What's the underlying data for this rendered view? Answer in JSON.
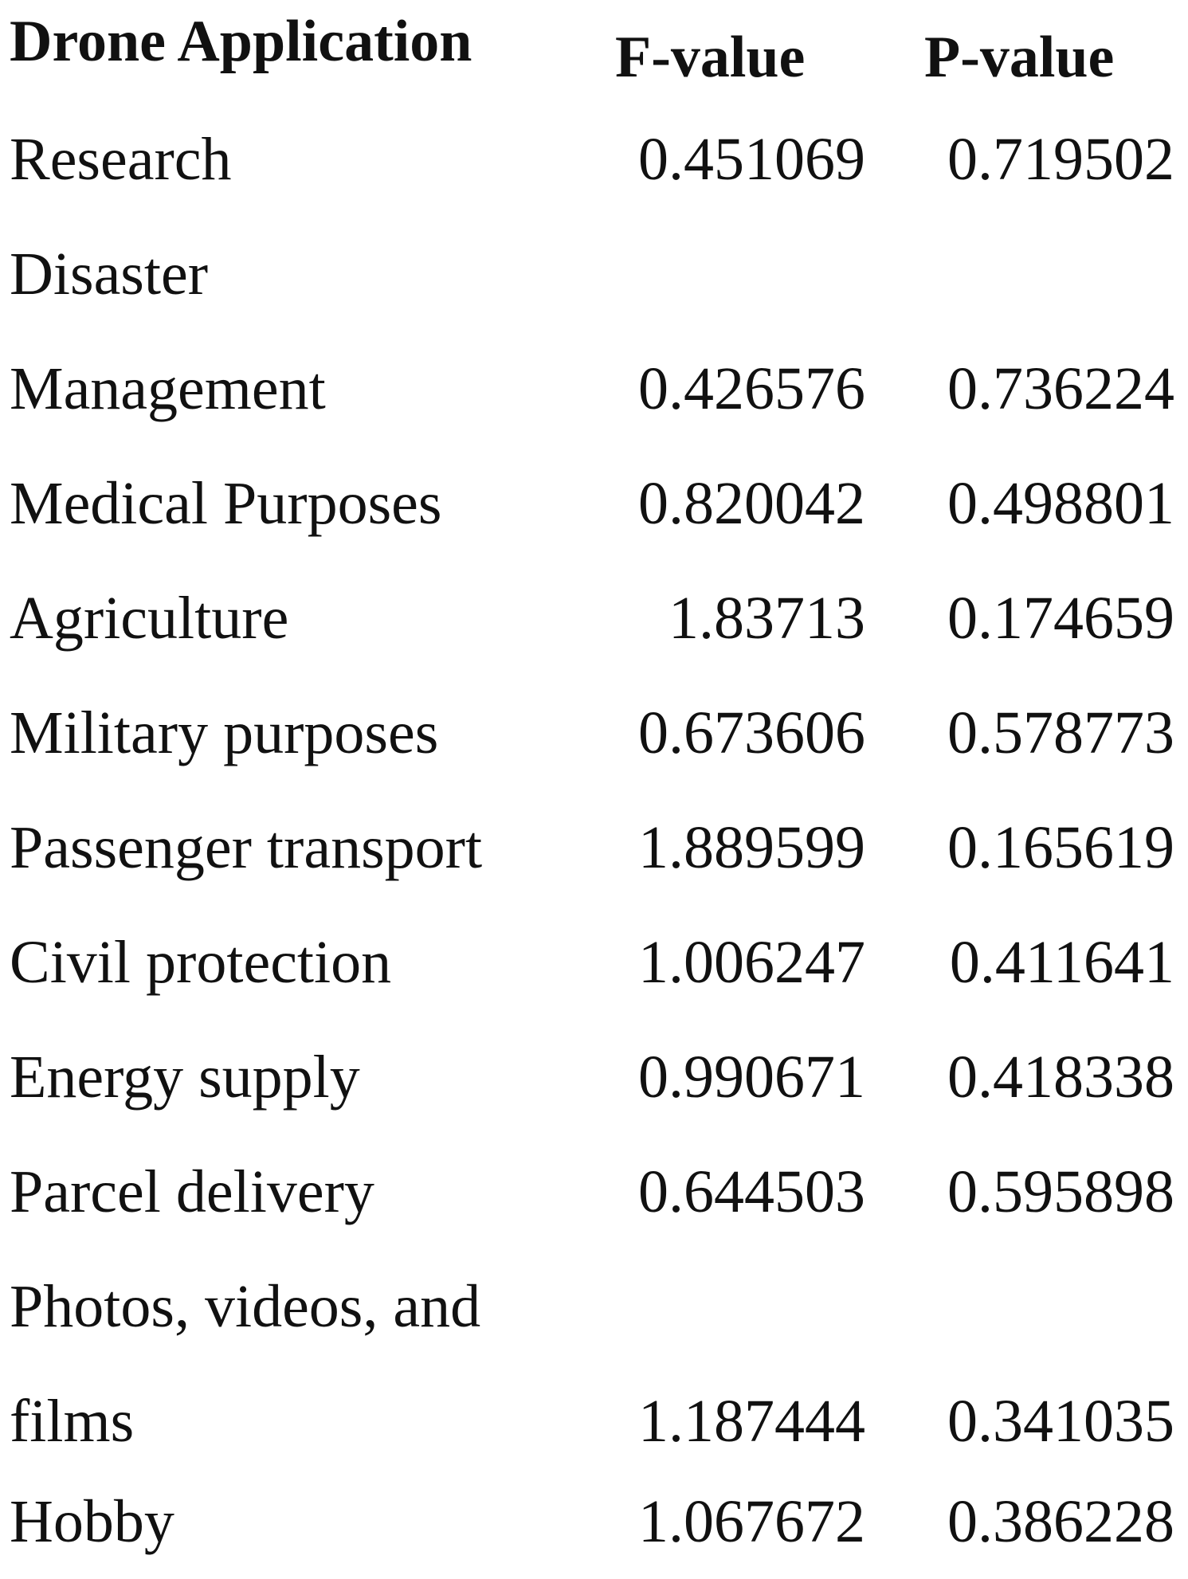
{
  "table": {
    "headers": {
      "application": "Drone Application",
      "f_value": "F-value",
      "p_value": "P-value"
    },
    "rows": [
      {
        "application": "Research",
        "f_value": "0.451069",
        "p_value": "0.719502"
      },
      {
        "application": "Disaster",
        "f_value": "",
        "p_value": ""
      },
      {
        "application": "Management",
        "f_value": "0.426576",
        "p_value": "0.736224"
      },
      {
        "application": "Medical Purposes",
        "f_value": "0.820042",
        "p_value": "0.498801"
      },
      {
        "application": "Agriculture",
        "f_value": "1.83713",
        "p_value": "0.174659"
      },
      {
        "application": "Military purposes",
        "f_value": "0.673606",
        "p_value": "0.578773"
      },
      {
        "application": "Passenger transport",
        "f_value": "1.889599",
        "p_value": "0.165619"
      },
      {
        "application": "Civil protection",
        "f_value": "1.006247",
        "p_value": "0.411641"
      },
      {
        "application": "Energy supply",
        "f_value": "0.990671",
        "p_value": "0.418338"
      },
      {
        "application": "Parcel delivery",
        "f_value": "0.644503",
        "p_value": "0.595898"
      },
      {
        "application": "Photos, videos, and",
        "f_value": "",
        "p_value": ""
      },
      {
        "application": "films",
        "f_value": "1.187444",
        "p_value": "0.341035"
      },
      {
        "application": "Hobby",
        "f_value": "1.067672",
        "p_value": "0.386228"
      }
    ]
  }
}
